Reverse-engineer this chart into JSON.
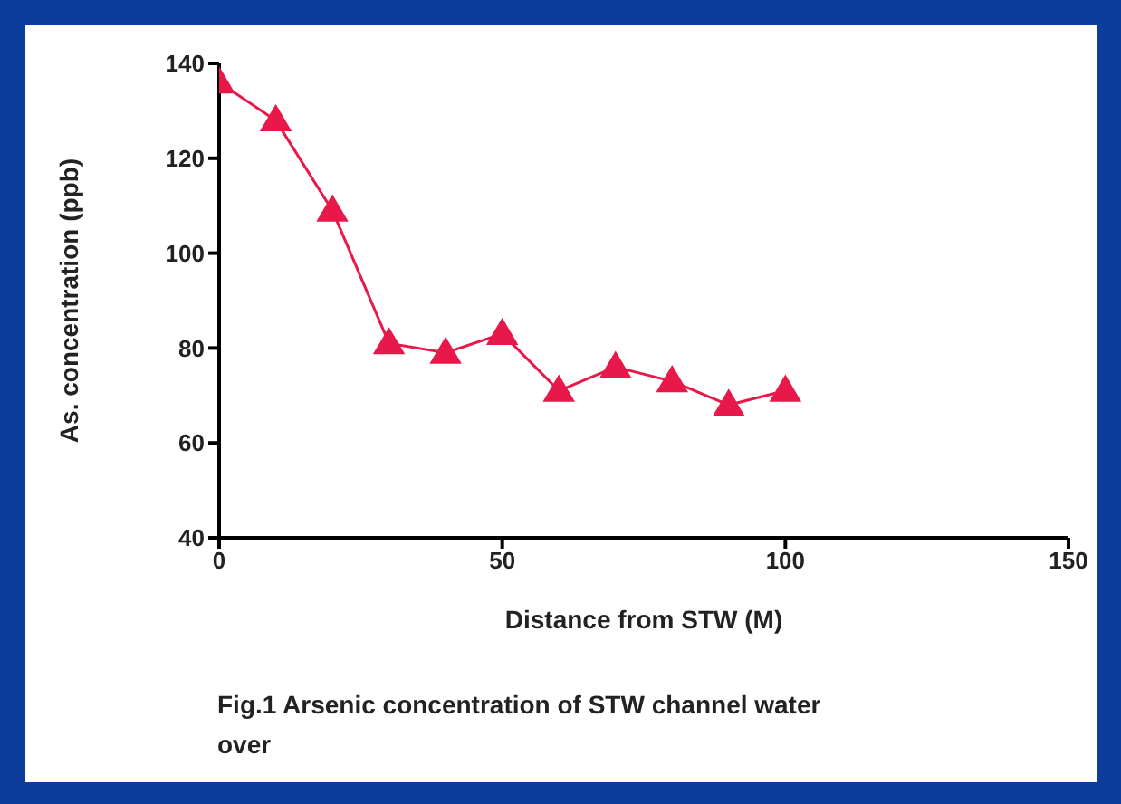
{
  "chart_data": {
    "type": "line",
    "title": "Fig.1 Arsenic concentration of STW channel water over",
    "xlabel": "Distance  from STW  (M)",
    "ylabel": "As. concentration (ppb)",
    "x": [
      0,
      10,
      20,
      30,
      40,
      50,
      60,
      70,
      80,
      90,
      100
    ],
    "series": [
      {
        "color": "#e8194a",
        "values": [
          136,
          128,
          109,
          81,
          79,
          83,
          71,
          76,
          73,
          68,
          71
        ]
      }
    ],
    "xlim": [
      0,
      150
    ],
    "xticks": [
      0,
      50,
      100,
      150
    ],
    "ylim": [
      40,
      140
    ],
    "yticks": [
      40,
      60,
      80,
      100,
      120,
      140
    ],
    "marker": "triangle",
    "line_style": "solid",
    "grid": false,
    "legend": false
  }
}
